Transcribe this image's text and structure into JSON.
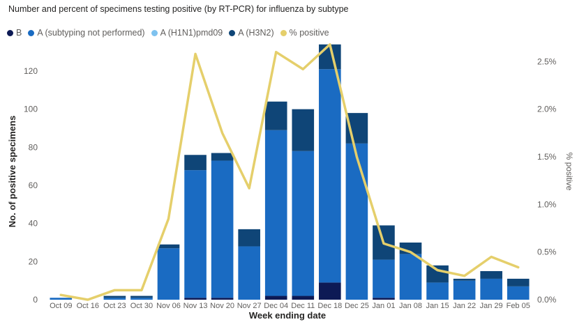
{
  "title": "Number and percent of specimens testing positive (by RT-PCR) for influenza by subtype",
  "legend": [
    {
      "label": "B",
      "color": "#0d1a55"
    },
    {
      "label": "A (subtyping not performed)",
      "color": "#1a6bc2"
    },
    {
      "label": "A (H1N1)pmd09",
      "color": "#7ec2ef"
    },
    {
      "label": "A (H3N2)",
      "color": "#0f4577"
    },
    {
      "label": "% positive",
      "color": "#e5cf6b"
    }
  ],
  "chart_data": {
    "type": "bar",
    "stacked": true,
    "categories": [
      "Oct 09",
      "Oct 16",
      "Oct 23",
      "Oct 30",
      "Nov 06",
      "Nov 13",
      "Nov 20",
      "Nov 27",
      "Dec 04",
      "Dec 11",
      "Dec 18",
      "Dec 25",
      "Jan 01",
      "Jan 08",
      "Jan 15",
      "Jan 22",
      "Jan 29",
      "Feb 05"
    ],
    "series": [
      {
        "name": "B",
        "color": "#0d1a55",
        "values": [
          0,
          0,
          0,
          0,
          0,
          1,
          1,
          0,
          2,
          2,
          9,
          0,
          1,
          0,
          0,
          0,
          0,
          0
        ]
      },
      {
        "name": "A (subtyping not performed)",
        "color": "#1a6bc2",
        "values": [
          1,
          0,
          1,
          1,
          27,
          67,
          72,
          28,
          87,
          76,
          112,
          82,
          20,
          24,
          9,
          10,
          11,
          7
        ]
      },
      {
        "name": "A (H1N1)pmd09",
        "color": "#7ec2ef",
        "values": [
          0,
          0,
          0,
          0,
          0,
          0,
          0,
          0,
          0,
          0,
          0,
          0,
          0,
          0,
          0,
          0,
          0,
          0
        ]
      },
      {
        "name": "A (H3N2)",
        "color": "#0f4577",
        "values": [
          0,
          0,
          1,
          1,
          2,
          8,
          4,
          9,
          15,
          22,
          13,
          16,
          18,
          6,
          9,
          1,
          4,
          4
        ]
      }
    ],
    "line_series": {
      "name": "% positive",
      "color": "#e5cf6b",
      "axis": "right",
      "values": [
        0.05,
        0.0,
        0.1,
        0.1,
        0.85,
        2.58,
        1.75,
        1.17,
        2.6,
        2.42,
        2.68,
        1.5,
        0.59,
        0.5,
        0.31,
        0.25,
        0.45,
        0.34
      ]
    },
    "xlabel": "Week ending date",
    "ylabel": "No. of positive specimens",
    "y2label": "% positive",
    "ylim": [
      0,
      135
    ],
    "yticks": [
      0,
      20,
      40,
      60,
      80,
      100,
      120
    ],
    "y2lim": [
      0,
      2.7
    ],
    "y2ticks": [
      0,
      0.5,
      1.0,
      1.5,
      2.0,
      2.5
    ],
    "y2tick_labels": [
      "0.0%",
      "0.5%",
      "1.0%",
      "1.5%",
      "2.0%",
      "2.5%"
    ],
    "grid": false,
    "legend_position": "top-left"
  }
}
